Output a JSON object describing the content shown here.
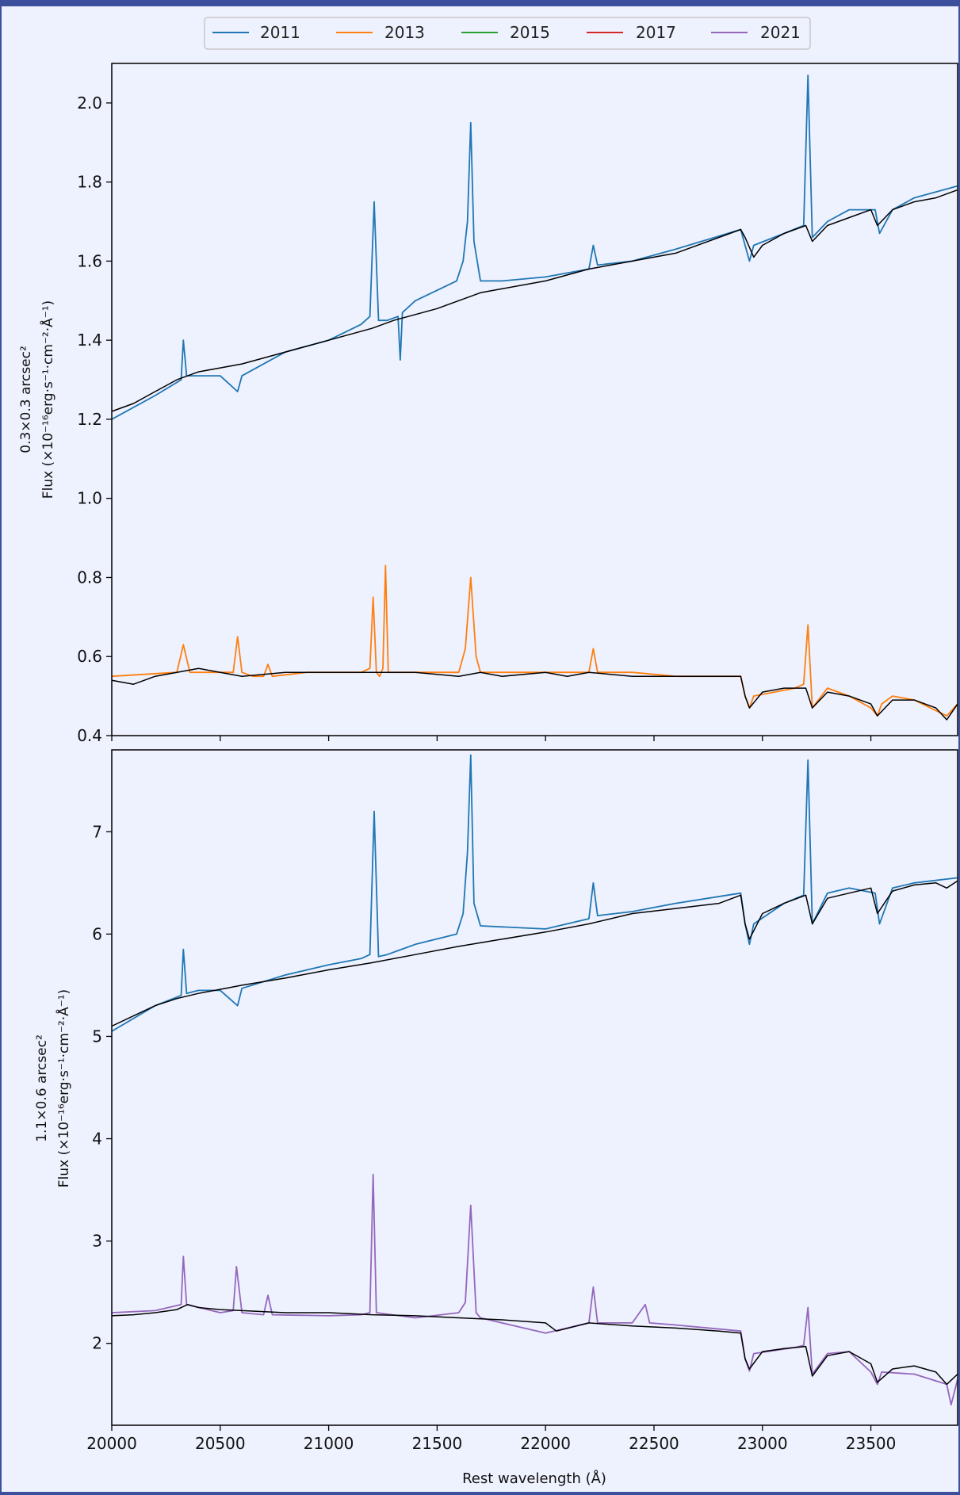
{
  "figure": {
    "legend": [
      "2011",
      "2013",
      "2015",
      "2017",
      "2021"
    ],
    "xlabel": "Rest wavelength (Å)"
  },
  "colors": {
    "2011": "#1f77b4",
    "2013": "#ff7f0e",
    "2015": "#2ca02c",
    "2017": "#d62728",
    "2021": "#9467bd",
    "model": "#000000",
    "background": "#eef1fe",
    "outer_border": "#3c4f9c"
  },
  "chart_data": [
    {
      "type": "line",
      "panel": "top",
      "ylabel_line1": "0.3×0.3 arcsec²",
      "ylabel_line2": "Flux (×10⁻¹⁶erg·s⁻¹·cm⁻²·Å⁻¹)",
      "xlim": [
        20000,
        23900
      ],
      "ylim": [
        0.4,
        2.1
      ],
      "xticks": [
        20000,
        20500,
        21000,
        21500,
        22000,
        22500,
        23000,
        23500
      ],
      "yticks": [
        "0.4",
        "0.6",
        "0.8",
        "1.0",
        "1.2",
        "1.4",
        "1.6",
        "1.8",
        "2.0"
      ],
      "legend": "top-center",
      "series": [
        {
          "name": "2011",
          "x": [
            20000,
            20200,
            20320,
            20330,
            20345,
            20400,
            20500,
            20580,
            20600,
            20800,
            21000,
            21150,
            21190,
            21210,
            21230,
            21270,
            21320,
            21330,
            21340,
            21400,
            21590,
            21620,
            21640,
            21655,
            21670,
            21700,
            21800,
            22000,
            22200,
            22220,
            22240,
            22400,
            22600,
            22900,
            22920,
            22940,
            22960,
            23100,
            23190,
            23210,
            23230,
            23300,
            23400,
            23520,
            23540,
            23600,
            23700,
            23900
          ],
          "y": [
            1.2,
            1.26,
            1.3,
            1.4,
            1.31,
            1.31,
            1.31,
            1.27,
            1.31,
            1.37,
            1.4,
            1.44,
            1.46,
            1.75,
            1.45,
            1.45,
            1.46,
            1.35,
            1.47,
            1.5,
            1.55,
            1.6,
            1.7,
            1.95,
            1.65,
            1.55,
            1.55,
            1.56,
            1.58,
            1.64,
            1.59,
            1.6,
            1.63,
            1.68,
            1.64,
            1.6,
            1.64,
            1.67,
            1.69,
            2.07,
            1.66,
            1.7,
            1.73,
            1.73,
            1.67,
            1.73,
            1.76,
            1.79
          ]
        },
        {
          "name": "2013",
          "x": [
            20000,
            20300,
            20330,
            20360,
            20500,
            20560,
            20580,
            20600,
            20650,
            20700,
            20720,
            20740,
            20900,
            21150,
            21190,
            21205,
            21220,
            21235,
            21250,
            21262,
            21275,
            21300,
            21400,
            21600,
            21630,
            21655,
            21680,
            21700,
            21900,
            22000,
            22200,
            22220,
            22240,
            22300,
            22400,
            22600,
            22900,
            22920,
            22940,
            22960,
            23150,
            23190,
            23210,
            23230,
            23300,
            23400,
            23500,
            23530,
            23550,
            23600,
            23700,
            23850,
            23900
          ],
          "y": [
            0.55,
            0.56,
            0.63,
            0.56,
            0.56,
            0.56,
            0.65,
            0.56,
            0.55,
            0.55,
            0.58,
            0.55,
            0.56,
            0.56,
            0.57,
            0.75,
            0.56,
            0.55,
            0.57,
            0.83,
            0.56,
            0.56,
            0.56,
            0.56,
            0.62,
            0.8,
            0.6,
            0.56,
            0.56,
            0.56,
            0.56,
            0.62,
            0.56,
            0.56,
            0.56,
            0.55,
            0.55,
            0.5,
            0.47,
            0.5,
            0.52,
            0.53,
            0.68,
            0.47,
            0.52,
            0.5,
            0.47,
            0.45,
            0.48,
            0.5,
            0.49,
            0.45,
            0.48
          ]
        },
        {
          "name": "model",
          "x": [
            20000,
            20100,
            20200,
            20300,
            20400,
            20500,
            20600,
            20800,
            21000,
            21200,
            21300,
            21500,
            21600,
            21700,
            21800,
            22000,
            22200,
            22400,
            22600,
            22900,
            22920,
            22960,
            23000,
            23100,
            23200,
            23230,
            23300,
            23400,
            23500,
            23530,
            23600,
            23700,
            23800,
            23900
          ],
          "y": [
            1.22,
            1.24,
            1.27,
            1.3,
            1.32,
            1.33,
            1.34,
            1.37,
            1.4,
            1.43,
            1.45,
            1.48,
            1.5,
            1.52,
            1.53,
            1.55,
            1.58,
            1.6,
            1.62,
            1.68,
            1.66,
            1.61,
            1.64,
            1.67,
            1.69,
            1.65,
            1.69,
            1.71,
            1.73,
            1.69,
            1.73,
            1.75,
            1.76,
            1.78
          ]
        },
        {
          "name": "model",
          "x": [
            20000,
            20100,
            20200,
            20300,
            20400,
            20500,
            20600,
            20800,
            21000,
            21200,
            21400,
            21600,
            21700,
            21800,
            22000,
            22100,
            22200,
            22400,
            22600,
            22800,
            22900,
            22920,
            22940,
            23000,
            23100,
            23200,
            23230,
            23300,
            23400,
            23500,
            23530,
            23600,
            23700,
            23800,
            23850,
            23900
          ],
          "y": [
            0.54,
            0.53,
            0.55,
            0.56,
            0.57,
            0.56,
            0.55,
            0.56,
            0.56,
            0.56,
            0.56,
            0.55,
            0.56,
            0.55,
            0.56,
            0.55,
            0.56,
            0.55,
            0.55,
            0.55,
            0.55,
            0.5,
            0.47,
            0.51,
            0.52,
            0.52,
            0.47,
            0.51,
            0.5,
            0.48,
            0.45,
            0.49,
            0.49,
            0.47,
            0.44,
            0.48
          ]
        }
      ]
    },
    {
      "type": "line",
      "panel": "bottom",
      "ylabel_line1": "1.1×0.6 arcsec²",
      "ylabel_line2": "Flux (×10⁻¹⁶erg·s⁻¹·cm⁻²·Å⁻¹)",
      "xlim": [
        20000,
        23900
      ],
      "ylim": [
        1.2,
        7.8
      ],
      "xticks": [
        "20000",
        "20500",
        "21000",
        "21500",
        "22000",
        "22500",
        "23000",
        "23500"
      ],
      "yticks": [
        "2",
        "3",
        "4",
        "5",
        "6",
        "7"
      ],
      "series": [
        {
          "name": "2011",
          "x": [
            20000,
            20200,
            20320,
            20330,
            20345,
            20400,
            20500,
            20580,
            20600,
            20800,
            21000,
            21150,
            21190,
            21210,
            21230,
            21270,
            21400,
            21590,
            21620,
            21640,
            21655,
            21670,
            21700,
            21800,
            22000,
            22200,
            22220,
            22240,
            22400,
            22600,
            22900,
            22920,
            22940,
            22960,
            23100,
            23190,
            23210,
            23230,
            23300,
            23400,
            23520,
            23540,
            23600,
            23700,
            23900
          ],
          "y": [
            5.05,
            5.3,
            5.4,
            5.85,
            5.42,
            5.45,
            5.45,
            5.3,
            5.47,
            5.6,
            5.7,
            5.76,
            5.8,
            7.2,
            5.78,
            5.8,
            5.9,
            6.0,
            6.2,
            6.8,
            7.75,
            6.3,
            6.08,
            6.07,
            6.05,
            6.15,
            6.5,
            6.18,
            6.22,
            6.3,
            6.4,
            6.1,
            5.9,
            6.1,
            6.3,
            6.38,
            7.7,
            6.1,
            6.4,
            6.45,
            6.4,
            6.1,
            6.45,
            6.5,
            6.55
          ]
        },
        {
          "name": "2021",
          "x": [
            20000,
            20200,
            20320,
            20330,
            20345,
            20500,
            20560,
            20575,
            20600,
            20700,
            20720,
            20740,
            21000,
            21150,
            21190,
            21205,
            21220,
            21400,
            21600,
            21630,
            21655,
            21680,
            21700,
            22000,
            22200,
            22220,
            22240,
            22400,
            22460,
            22480,
            22600,
            22900,
            22920,
            22940,
            22960,
            23150,
            23190,
            23210,
            23230,
            23300,
            23400,
            23500,
            23530,
            23550,
            23700,
            23850,
            23870,
            23900
          ],
          "y": [
            2.3,
            2.32,
            2.38,
            2.85,
            2.38,
            2.3,
            2.32,
            2.75,
            2.3,
            2.28,
            2.47,
            2.28,
            2.27,
            2.28,
            2.3,
            3.65,
            2.3,
            2.25,
            2.3,
            2.4,
            3.35,
            2.3,
            2.25,
            2.1,
            2.2,
            2.55,
            2.2,
            2.2,
            2.38,
            2.2,
            2.18,
            2.12,
            1.85,
            1.73,
            1.9,
            1.96,
            1.98,
            2.35,
            1.7,
            1.9,
            1.92,
            1.72,
            1.6,
            1.72,
            1.7,
            1.6,
            1.4,
            1.65
          ]
        },
        {
          "name": "model",
          "x": [
            20000,
            20100,
            20200,
            20300,
            20400,
            20500,
            20600,
            20800,
            21000,
            21200,
            21400,
            21600,
            21800,
            22000,
            22200,
            22400,
            22600,
            22800,
            22900,
            22920,
            22940,
            23000,
            23100,
            23200,
            23230,
            23300,
            23400,
            23500,
            23530,
            23600,
            23700,
            23800,
            23850,
            23900
          ],
          "y": [
            5.1,
            5.2,
            5.3,
            5.37,
            5.42,
            5.46,
            5.5,
            5.57,
            5.65,
            5.72,
            5.8,
            5.88,
            5.95,
            6.02,
            6.1,
            6.2,
            6.25,
            6.3,
            6.38,
            6.1,
            5.95,
            6.2,
            6.3,
            6.38,
            6.1,
            6.35,
            6.4,
            6.45,
            6.2,
            6.42,
            6.48,
            6.5,
            6.45,
            6.52
          ]
        },
        {
          "name": "model",
          "x": [
            20000,
            20100,
            20200,
            20300,
            20350,
            20400,
            20500,
            20600,
            20800,
            21000,
            21200,
            21400,
            21600,
            21800,
            22000,
            22050,
            22200,
            22400,
            22600,
            22800,
            22900,
            22920,
            22940,
            23000,
            23100,
            23200,
            23230,
            23300,
            23400,
            23500,
            23530,
            23600,
            23700,
            23800,
            23850,
            23900
          ],
          "y": [
            2.27,
            2.28,
            2.3,
            2.33,
            2.38,
            2.35,
            2.33,
            2.32,
            2.3,
            2.3,
            2.28,
            2.27,
            2.25,
            2.23,
            2.2,
            2.12,
            2.2,
            2.17,
            2.15,
            2.12,
            2.1,
            1.85,
            1.75,
            1.92,
            1.95,
            1.97,
            1.68,
            1.88,
            1.92,
            1.8,
            1.62,
            1.75,
            1.78,
            1.72,
            1.6,
            1.7
          ]
        }
      ]
    }
  ]
}
